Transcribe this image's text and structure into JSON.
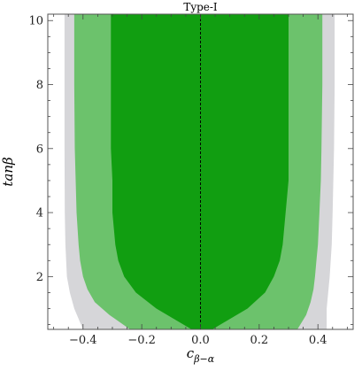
{
  "chart_data": {
    "type": "area",
    "title": "Type-I",
    "xlabel": "c_{β−α}",
    "xlabel_main": "c",
    "xlabel_sub": "β−α",
    "ylabel": "tanβ",
    "xlim": [
      -0.52,
      0.52
    ],
    "ylim": [
      0.35,
      10.2
    ],
    "x_ticks": [
      -0.4,
      -0.2,
      0.0,
      0.2,
      0.4
    ],
    "x_tick_labels": [
      "−0.4",
      "−0.2",
      "0.0",
      "0.2",
      "0.4"
    ],
    "y_ticks": [
      2,
      4,
      6,
      8,
      10
    ],
    "y_tick_labels": [
      "2",
      "4",
      "6",
      "8",
      "10"
    ],
    "grid": false,
    "reference_line": {
      "x": 0.0,
      "style": "dashed",
      "color": "#000000"
    },
    "colors": {
      "outer": "#d6d6d9",
      "middle": "#6cc26c",
      "inner": "#119e11",
      "frame": "#555555"
    },
    "regions": [
      {
        "level": "outer",
        "y": [
          0.35,
          1.0,
          1.5,
          2.0,
          3.0,
          4.0,
          6.0,
          8.0,
          10.2
        ],
        "x_left": [
          -0.4,
          -0.43,
          -0.445,
          -0.455,
          -0.46,
          -0.462,
          -0.463,
          -0.463,
          -0.463
        ],
        "x_right": [
          0.43,
          0.43,
          0.435,
          0.44,
          0.447,
          0.45,
          0.455,
          0.457,
          0.457
        ]
      },
      {
        "level": "middle",
        "y": [
          0.35,
          0.8,
          1.2,
          1.6,
          2.0,
          2.5,
          3.0,
          4.0,
          5.0,
          6.0,
          8.0,
          10.2
        ],
        "x_left": [
          -0.24,
          -0.31,
          -0.36,
          -0.385,
          -0.4,
          -0.41,
          -0.415,
          -0.422,
          -0.425,
          -0.428,
          -0.43,
          -0.43
        ],
        "x_right": [
          0.33,
          0.36,
          0.375,
          0.385,
          0.39,
          0.395,
          0.4,
          0.405,
          0.41,
          0.412,
          0.415,
          0.415
        ]
      },
      {
        "level": "inner",
        "y": [
          0.35,
          1.0,
          1.5,
          2.0,
          2.5,
          3.0,
          4.0,
          5.0,
          6.0,
          8.0,
          10.2
        ],
        "x_left": [
          -0.03,
          -0.15,
          -0.22,
          -0.26,
          -0.28,
          -0.29,
          -0.3,
          -0.3,
          -0.305,
          -0.305,
          -0.305
        ],
        "x_right": [
          0.04,
          0.16,
          0.22,
          0.25,
          0.27,
          0.28,
          0.29,
          0.3,
          0.3,
          0.3,
          0.3
        ]
      }
    ]
  }
}
